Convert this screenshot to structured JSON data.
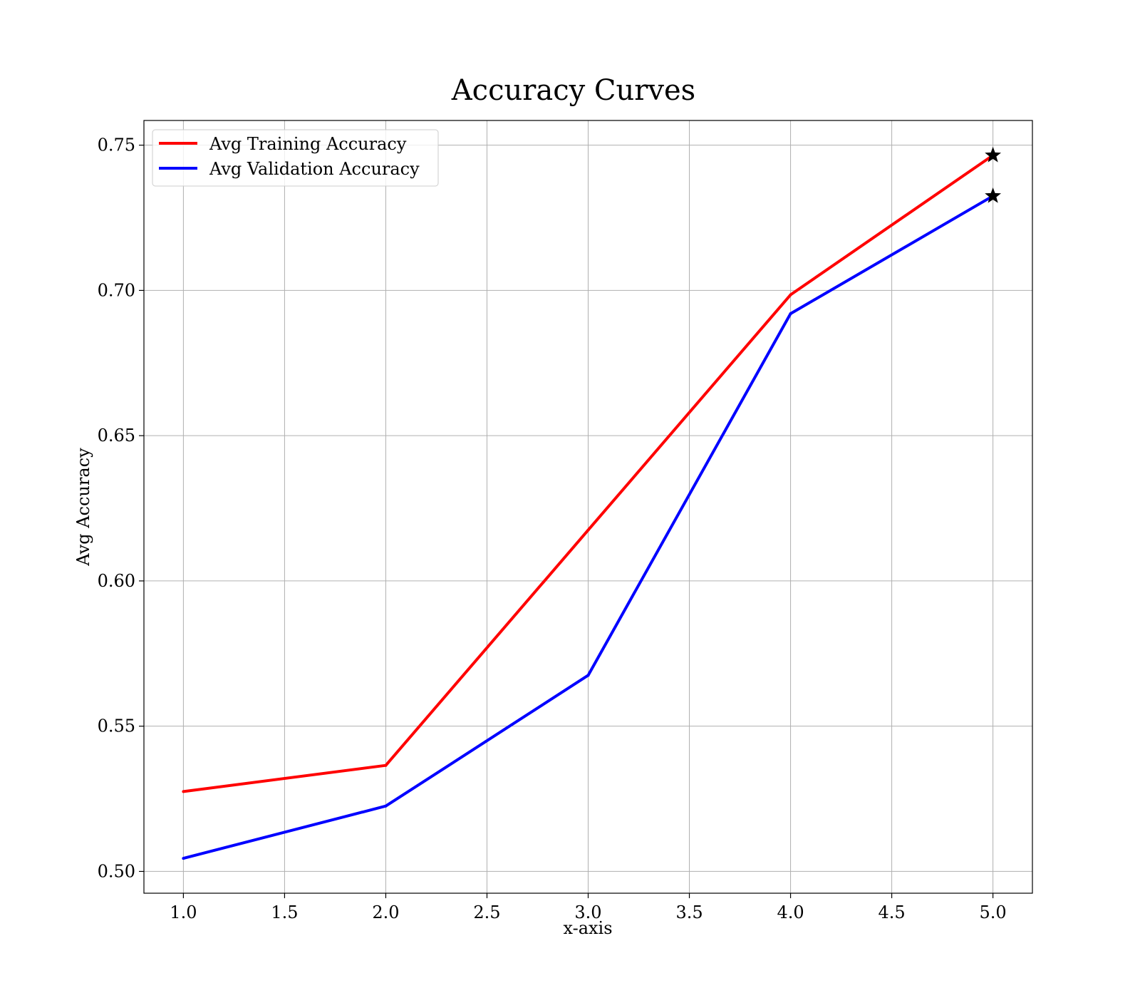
{
  "chart_data": {
    "type": "line",
    "title": "Accuracy Curves",
    "xlabel": "x-axis",
    "ylabel": "Avg Accuracy",
    "xlim": [
      0.805,
      5.195
    ],
    "ylim": [
      0.4925,
      0.7585
    ],
    "x_ticks": [
      "1.0",
      "1.5",
      "2.0",
      "2.5",
      "3.0",
      "3.5",
      "4.0",
      "4.5",
      "5.0"
    ],
    "y_ticks": [
      "0.50",
      "0.55",
      "0.60",
      "0.65",
      "0.70",
      "0.75"
    ],
    "x": [
      1,
      2,
      3,
      4,
      5
    ],
    "grid": true,
    "legend_position": "top-left",
    "series": [
      {
        "name": "Avg Training Accuracy",
        "color": "#ff0000",
        "values": [
          0.5275,
          0.5365,
          0.6175,
          0.6985,
          0.7465
        ],
        "end_marker": "star"
      },
      {
        "name": "Avg Validation Accuracy",
        "color": "#0000ff",
        "values": [
          0.5045,
          0.5225,
          0.5675,
          0.692,
          0.7325
        ],
        "end_marker": "star"
      }
    ]
  }
}
